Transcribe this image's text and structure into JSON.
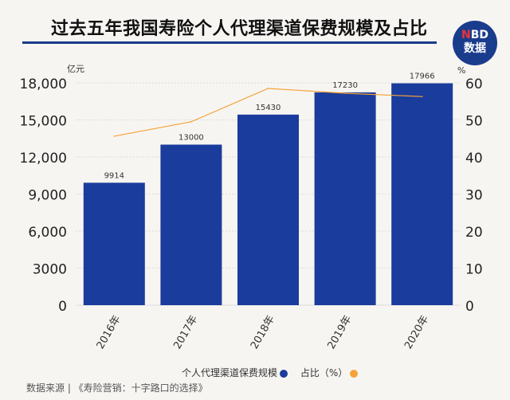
{
  "title": "过去五年我国寿险个人代理渠道保费规模及占比",
  "logo": {
    "line1_accent": "N",
    "line1_rest": "BD",
    "line2": "数据",
    "colors": {
      "bg": "#1a3c8c",
      "accent": "#e33333"
    }
  },
  "source": "数据来源 | 《寿险营销：十字路口的选择》",
  "chart_data": {
    "type": "bar+line",
    "categories": [
      "2016年",
      "2017年",
      "2018年",
      "2019年",
      "2020年"
    ],
    "series": [
      {
        "name": "个人代理渠道保费规模",
        "type": "bar",
        "axis": "left",
        "values": [
          9914,
          13000,
          15430,
          17230,
          17966
        ],
        "labels": [
          "9914",
          "13000",
          "15430",
          "17230",
          "17966"
        ],
        "color": "#1a3c9c"
      },
      {
        "name": "占比（%）",
        "type": "line",
        "axis": "right",
        "values": [
          45.6,
          49.5,
          58.5,
          57.2,
          56.3
        ],
        "color": "#f5a33a"
      }
    ],
    "yleft": {
      "unit": "亿元",
      "range": [
        0,
        18000
      ],
      "ticks": [
        "0",
        "3000",
        "6,000",
        "9,000",
        "12,000",
        "15,000",
        "18,000"
      ]
    },
    "yright": {
      "unit": "%",
      "range": [
        0,
        60
      ],
      "ticks": [
        "0",
        "10",
        "20",
        "30",
        "40",
        "50",
        "60"
      ]
    },
    "legend": "bottom",
    "grid": true
  }
}
